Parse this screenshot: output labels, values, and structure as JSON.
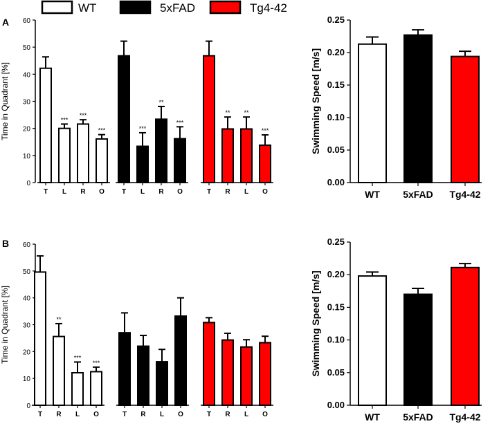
{
  "legend": {
    "items": [
      {
        "label": "WT",
        "fill": "#ffffff"
      },
      {
        "label": "5xFAD",
        "fill": "#000000"
      },
      {
        "label": "Tg4-42",
        "fill": "#ff0000"
      }
    ]
  },
  "colors": {
    "WT": "#ffffff",
    "5xFAD": "#000000",
    "Tg4-42": "#ff0000",
    "outline": "#000000"
  },
  "chart_data": [
    {
      "id": "A-quadrant",
      "panel": "A",
      "type": "bar",
      "ylabel": "Time in Quadrant [%]",
      "ylim": [
        0,
        60
      ],
      "yticks": [
        0,
        10,
        20,
        30,
        40,
        50,
        60
      ],
      "groups": [
        {
          "name": "WT",
          "color": "#ffffff",
          "bars": [
            {
              "label": "T",
              "value": 42.2,
              "err": 4.2,
              "sig": ""
            },
            {
              "label": "L",
              "value": 20.0,
              "err": 1.6,
              "sig": "***"
            },
            {
              "label": "R",
              "value": 21.6,
              "err": 1.6,
              "sig": "***"
            },
            {
              "label": "O",
              "value": 16.1,
              "err": 1.6,
              "sig": "***"
            }
          ]
        },
        {
          "name": "5xFAD",
          "color": "#000000",
          "bars": [
            {
              "label": "T",
              "value": 46.8,
              "err": 5.4,
              "sig": ""
            },
            {
              "label": "L",
              "value": 13.4,
              "err": 5.0,
              "sig": "***"
            },
            {
              "label": "R",
              "value": 23.4,
              "err": 4.7,
              "sig": "**"
            },
            {
              "label": "O",
              "value": 16.2,
              "err": 4.4,
              "sig": "***"
            }
          ]
        },
        {
          "name": "Tg4-42",
          "color": "#ff0000",
          "bars": [
            {
              "label": "T",
              "value": 46.8,
              "err": 5.4,
              "sig": ""
            },
            {
              "label": "R",
              "value": 19.8,
              "err": 4.4,
              "sig": "**"
            },
            {
              "label": "L",
              "value": 19.8,
              "err": 4.4,
              "sig": "**"
            },
            {
              "label": "O",
              "value": 13.8,
              "err": 3.8,
              "sig": "***"
            }
          ]
        }
      ]
    },
    {
      "id": "A-speed",
      "panel": "A",
      "type": "bar",
      "ylabel": "Swimming Speed [m/s]",
      "ylim": [
        0,
        0.25
      ],
      "yticks": [
        "0.00",
        "0.05",
        "0.10",
        "0.15",
        "0.20",
        "0.25"
      ],
      "categories": [
        "WT",
        "5xFAD",
        "Tg4-42"
      ],
      "values": [
        0.213,
        0.227,
        0.194
      ],
      "errors": [
        0.011,
        0.008,
        0.008
      ]
    },
    {
      "id": "B-quadrant",
      "panel": "B",
      "type": "bar",
      "ylabel": "Time in Quadrant [%]",
      "ylim": [
        0,
        60
      ],
      "yticks": [
        0,
        10,
        20,
        30,
        40,
        50,
        60
      ],
      "groups": [
        {
          "name": "WT",
          "color": "#ffffff",
          "bars": [
            {
              "label": "T",
              "value": 49.6,
              "err": 6.0,
              "sig": ""
            },
            {
              "label": "R",
              "value": 25.6,
              "err": 4.8,
              "sig": "**"
            },
            {
              "label": "L",
              "value": 12.1,
              "err": 4.0,
              "sig": "***"
            },
            {
              "label": "O",
              "value": 12.5,
              "err": 1.7,
              "sig": "***"
            }
          ]
        },
        {
          "name": "5xFAD",
          "color": "#000000",
          "bars": [
            {
              "label": "T",
              "value": 27.0,
              "err": 7.4,
              "sig": ""
            },
            {
              "label": "R",
              "value": 22.0,
              "err": 4.0,
              "sig": ""
            },
            {
              "label": "L",
              "value": 16.2,
              "err": 4.6,
              "sig": ""
            },
            {
              "label": "O",
              "value": 33.2,
              "err": 6.8,
              "sig": ""
            }
          ]
        },
        {
          "name": "Tg4-42",
          "color": "#ff0000",
          "bars": [
            {
              "label": "T",
              "value": 30.8,
              "err": 1.8,
              "sig": ""
            },
            {
              "label": "R",
              "value": 24.3,
              "err": 2.5,
              "sig": ""
            },
            {
              "label": "L",
              "value": 21.7,
              "err": 2.7,
              "sig": ""
            },
            {
              "label": "O",
              "value": 23.3,
              "err": 2.4,
              "sig": ""
            }
          ]
        }
      ]
    },
    {
      "id": "B-speed",
      "panel": "B",
      "type": "bar",
      "ylabel": "Swimming Speed [m/s]",
      "ylim": [
        0,
        0.25
      ],
      "yticks": [
        "0.00",
        "0.05",
        "0.10",
        "0.15",
        "0.20",
        "0.25"
      ],
      "categories": [
        "WT",
        "5xFAD",
        "Tg4-42"
      ],
      "values": [
        0.198,
        0.17,
        0.211
      ],
      "errors": [
        0.006,
        0.009,
        0.006
      ]
    }
  ]
}
